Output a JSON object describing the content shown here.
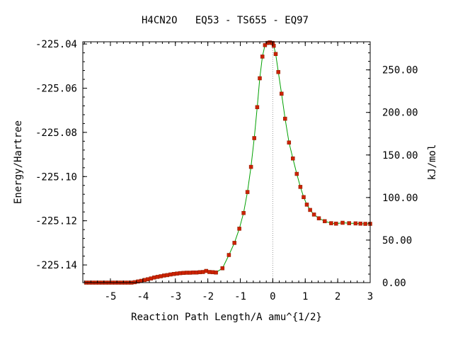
{
  "chart_data": {
    "type": "line",
    "title": "H4CN2O   EQ53 - TS655 - EQ97",
    "xlabel": "Reaction Path Length/A amu^{1/2}",
    "ylabel": "Energy/Hartree",
    "y2label": "kJ/mol",
    "xlim": [
      -5.85,
      3.0
    ],
    "ylim": [
      -225.148,
      -225.039
    ],
    "y2lim": [
      0.0,
      283.0
    ],
    "x_ticks": [
      -5,
      -4,
      -3,
      -2,
      -1,
      0,
      1,
      2,
      3
    ],
    "x_tick_labels": [
      "-5",
      "-4",
      "-3",
      "-2",
      "-1",
      "0",
      "1",
      "2",
      "3"
    ],
    "y_ticks": [
      -225.04,
      -225.06,
      -225.08,
      -225.1,
      -225.12,
      -225.14
    ],
    "y_tick_labels": [
      "-225.04",
      "-225.06",
      "-225.08",
      "-225.10",
      "-225.12",
      "-225.14"
    ],
    "y2_ticks": [
      0,
      50,
      100,
      150,
      200,
      250
    ],
    "y2_tick_labels": [
      "0.00",
      "50.00",
      "100.00",
      "150.00",
      "200.00",
      "250.00"
    ],
    "ts_marker_x": 0.0,
    "colors": {
      "line": "#00a000",
      "marker": "#cc2200",
      "marker_edge": "#8a1a00",
      "ts_line": "#999999"
    },
    "series": [
      {
        "x": [
          -5.75,
          -5.65,
          -5.55,
          -5.45,
          -5.35,
          -5.25,
          -5.15,
          -5.05,
          -4.95,
          -4.85,
          -4.75,
          -4.65,
          -4.55,
          -4.45,
          -4.35,
          -4.25,
          -4.15,
          -4.05,
          -3.95,
          -3.85,
          -3.75,
          -3.65,
          -3.55,
          -3.45,
          -3.35,
          -3.25,
          -3.15,
          -3.05,
          -2.95,
          -2.85,
          -2.75,
          -2.65,
          -2.55,
          -2.45,
          -2.35,
          -2.25,
          -2.15,
          -2.05,
          -1.95,
          -1.85,
          -1.75,
          -1.55,
          -1.35,
          -1.18,
          -1.03,
          -0.9,
          -0.78,
          -0.67,
          -0.57,
          -0.48,
          -0.4,
          -0.32,
          -0.24,
          -0.16,
          -0.09,
          -0.03,
          0.0,
          0.03,
          0.09,
          0.17,
          0.27,
          0.38,
          0.5,
          0.62,
          0.74,
          0.85,
          0.95,
          1.05,
          1.15,
          1.27,
          1.42,
          1.6,
          1.8,
          1.95,
          2.15,
          2.35,
          2.55,
          2.7,
          2.85,
          3.0
        ],
        "y": [
          -225.148,
          -225.148,
          -225.148,
          -225.148,
          -225.148,
          -225.148,
          -225.148,
          -225.148,
          -225.148,
          -225.148,
          -225.148,
          -225.148,
          -225.148,
          -225.148,
          -225.148,
          -225.1478,
          -225.1475,
          -225.1472,
          -225.1468,
          -225.1465,
          -225.1461,
          -225.1457,
          -225.1454,
          -225.1451,
          -225.1448,
          -225.1446,
          -225.1443,
          -225.1441,
          -225.1439,
          -225.1437,
          -225.1436,
          -225.1435,
          -225.1435,
          -225.1434,
          -225.1434,
          -225.1433,
          -225.1432,
          -225.1427,
          -225.1432,
          -225.1433,
          -225.1434,
          -225.1415,
          -225.1355,
          -225.13,
          -225.1236,
          -225.1165,
          -225.107,
          -225.0956,
          -225.0826,
          -225.0686,
          -225.0555,
          -225.0457,
          -225.0405,
          -225.0395,
          -225.0393,
          -225.0395,
          -225.0396,
          -225.0408,
          -225.0445,
          -225.0527,
          -225.0625,
          -225.0738,
          -225.0846,
          -225.0918,
          -225.0988,
          -225.1047,
          -225.1093,
          -225.1127,
          -225.1151,
          -225.1172,
          -225.1189,
          -225.1202,
          -225.1211,
          -225.1213,
          -225.1209,
          -225.1211,
          -225.1212,
          -225.1213,
          -225.1214,
          -225.1214
        ]
      }
    ]
  }
}
